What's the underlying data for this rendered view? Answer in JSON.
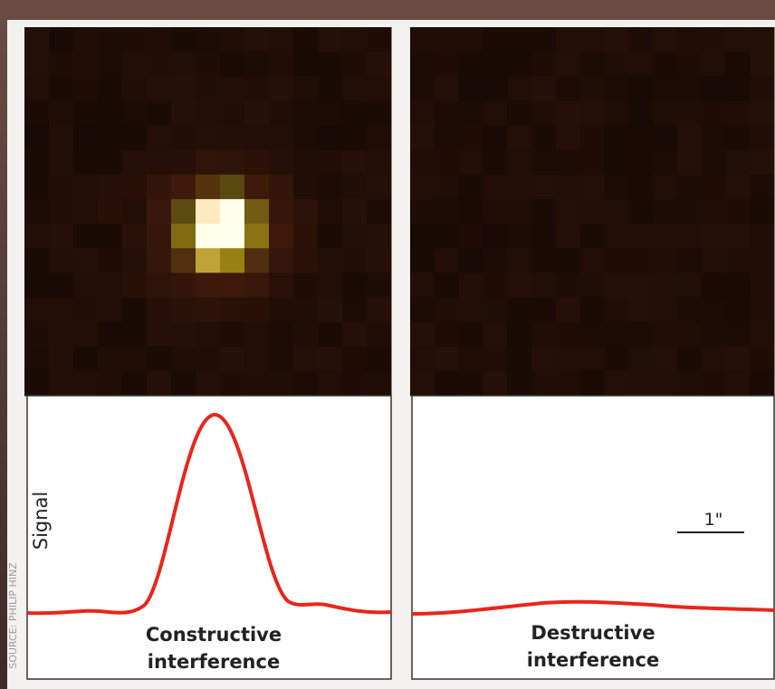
{
  "panels": [
    {
      "lines": [
        "Constructive",
        "interference"
      ],
      "axis_label": "Signal"
    },
    {
      "lines": [
        "Destructive",
        "interference"
      ],
      "scale_label": "1\""
    }
  ],
  "source": "SOURCE: PHILIP HINZ"
}
